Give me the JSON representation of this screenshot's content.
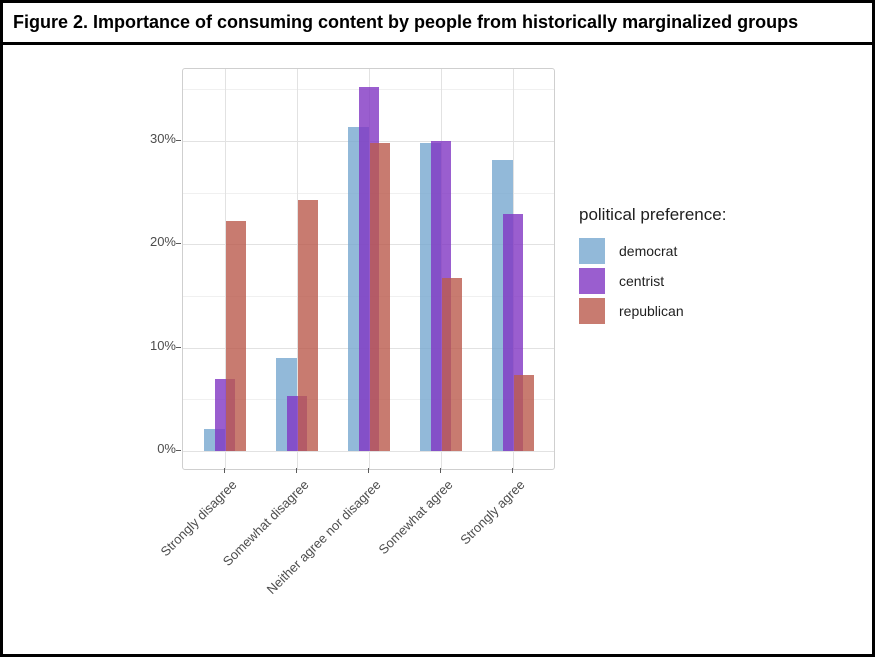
{
  "figure": {
    "title": "Figure 2. Importance of consuming content by people from historically marginalized groups"
  },
  "chart_data": {
    "type": "bar",
    "title": "Figure 2. Importance of consuming content by people from historically marginalized groups",
    "categories": [
      "Strongly disagree",
      "Somewhat disagree",
      "Neither agree nor disagree",
      "Somewhat agree",
      "Strongly agree"
    ],
    "series": [
      {
        "name": "democrat",
        "color": "#92b9d9",
        "fill_rgba": "rgba(119,168,208,0.8)",
        "values": [
          2.1,
          9.0,
          31.4,
          29.8,
          28.2
        ]
      },
      {
        "name": "centrist",
        "color": "#9a5ecf",
        "fill_rgba": "rgba(129,54,195,0.8)",
        "values": [
          7.0,
          5.3,
          35.2,
          30.0,
          22.9
        ]
      },
      {
        "name": "republican",
        "color": "#c87b70",
        "fill_rgba": "rgba(186,90,76,0.8)",
        "values": [
          22.3,
          24.3,
          29.8,
          16.7,
          7.4
        ]
      }
    ],
    "y_ticks": [
      {
        "label": "0%",
        "value": 0
      },
      {
        "label": "10%",
        "value": 10
      },
      {
        "label": "20%",
        "value": 20
      },
      {
        "label": "30%",
        "value": 30
      }
    ],
    "y_minor_values": [
      5,
      15,
      25,
      35
    ],
    "ylim": [
      -1.7,
      37.0
    ],
    "xlabel": "",
    "ylabel": "",
    "grid": true,
    "legend": {
      "title": "political preference:",
      "position": "right"
    },
    "style": {
      "axis_text_color": "#4d4d4d",
      "grid_major_color": "#e2e2e2",
      "grid_minor_color": "#f0f0f0",
      "panel_border_color": "#cfcfcf"
    }
  }
}
